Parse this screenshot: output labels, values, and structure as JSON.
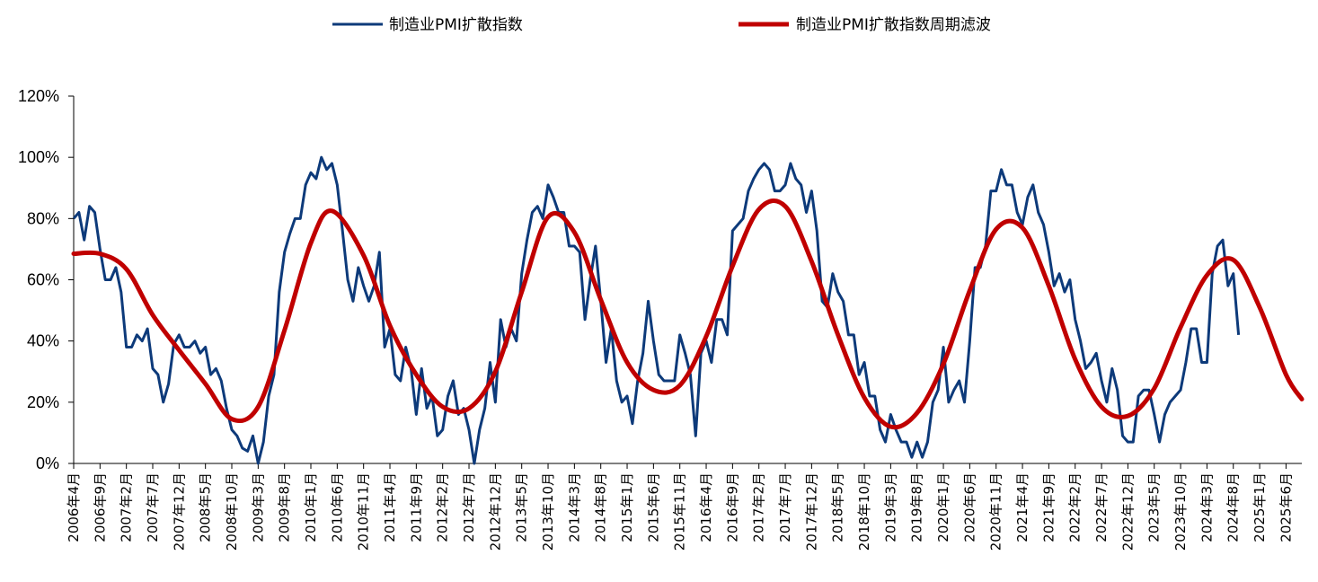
{
  "chart_data": {
    "type": "line",
    "legend_position": "top",
    "grid": false,
    "ylim": [
      0,
      120
    ],
    "y_tick_labels": [
      "0%",
      "20%",
      "40%",
      "60%",
      "80%",
      "100%",
      "120%"
    ],
    "y_ticks": [
      0,
      20,
      40,
      60,
      80,
      100,
      120
    ],
    "x_start": "2006-04",
    "x_end": "2025-09",
    "x_tick_labels": [
      "2006年4月",
      "2006年9月",
      "2007年2月",
      "2007年7月",
      "2007年12月",
      "2008年5月",
      "2008年10月",
      "2009年3月",
      "2009年8月",
      "2010年1月",
      "2010年6月",
      "2010年11月",
      "2011年4月",
      "2011年9月",
      "2012年2月",
      "2012年7月",
      "2012年12月",
      "2013年5月",
      "2013年10月",
      "2014年3月",
      "2014年8月",
      "2015年1月",
      "2015年6月",
      "2015年11月",
      "2016年4月",
      "2016年9月",
      "2017年2月",
      "2017年7月",
      "2017年12月",
      "2018年5月",
      "2018年10月",
      "2019年3月",
      "2019年8月",
      "2020年1月",
      "2020年6月",
      "2020年11月",
      "2021年4月",
      "2021年9月",
      "2022年2月",
      "2022年7月",
      "2022年12月",
      "2023年5月",
      "2023年10月",
      "2024年3月",
      "2024年8月",
      "2025年1月",
      "2025年6月"
    ],
    "series": [
      {
        "name": "制造业PMI扩散指数",
        "color": "#0d3a7a",
        "x_start": "2006-04",
        "values": [
          80,
          82,
          73,
          84,
          82,
          70,
          60,
          60,
          64,
          56,
          38,
          38,
          42,
          40,
          44,
          31,
          29,
          20,
          26,
          39,
          42,
          38,
          38,
          40,
          36,
          38,
          29,
          31,
          27,
          18,
          11,
          9,
          5,
          4,
          9,
          0,
          7,
          22,
          29,
          56,
          69,
          75,
          80,
          80,
          91,
          95,
          93,
          100,
          96,
          98,
          91,
          76,
          60,
          53,
          64,
          58,
          53,
          58,
          69,
          38,
          44,
          29,
          27,
          38,
          31,
          16,
          31,
          18,
          22,
          9,
          11,
          22,
          27,
          16,
          18,
          11,
          0,
          11,
          18,
          33,
          20,
          47,
          38,
          44,
          40,
          62,
          73,
          82,
          84,
          80,
          91,
          87,
          82,
          82,
          71,
          71,
          69,
          47,
          60,
          71,
          53,
          33,
          44,
          27,
          20,
          22,
          13,
          27,
          36,
          53,
          40,
          29,
          27,
          27,
          27,
          42,
          36,
          29,
          9,
          36,
          40,
          33,
          47,
          47,
          42,
          76,
          78,
          80,
          89,
          93,
          96,
          98,
          96,
          89,
          89,
          91,
          98,
          93,
          91,
          82,
          89,
          76,
          53,
          51,
          62,
          56,
          53,
          42,
          42,
          29,
          33,
          22,
          22,
          11,
          7,
          16,
          11,
          7,
          7,
          2,
          7,
          2,
          7,
          20,
          24,
          38,
          20,
          24,
          27,
          20,
          40,
          64,
          64,
          71,
          89,
          89,
          96,
          91,
          91,
          82,
          78,
          87,
          91,
          82,
          78,
          69,
          58,
          62,
          56,
          60,
          47,
          40,
          31,
          33,
          36,
          27,
          20,
          31,
          24,
          9,
          7,
          7,
          22,
          24,
          24,
          16,
          7,
          16,
          20,
          22,
          24,
          33,
          44,
          44,
          33,
          33,
          62,
          71,
          73,
          58,
          62,
          42
        ]
      },
      {
        "name": "制造业PMI扩散指数周期滤波",
        "color": "#c00000",
        "anchors_x": [
          "2006-04",
          "2006-09",
          "2007-02",
          "2007-07",
          "2007-12",
          "2008-05",
          "2008-10",
          "2009-03",
          "2009-08",
          "2010-01",
          "2010-05",
          "2010-11",
          "2011-04",
          "2011-09",
          "2012-02",
          "2012-07",
          "2012-12",
          "2013-05",
          "2013-10",
          "2014-03",
          "2014-08",
          "2015-01",
          "2015-06",
          "2015-11",
          "2016-04",
          "2016-09",
          "2017-02",
          "2017-07",
          "2017-12",
          "2018-05",
          "2018-10",
          "2019-03",
          "2019-08",
          "2020-01",
          "2020-06",
          "2020-11",
          "2021-04",
          "2021-09",
          "2022-02",
          "2022-07",
          "2022-12",
          "2023-05",
          "2023-10",
          "2024-03",
          "2024-08",
          "2025-01",
          "2025-06",
          "2025-09"
        ],
        "anchors_y": [
          68.5,
          68.5,
          63.5,
          48.5,
          37.0,
          26.0,
          14.5,
          18.5,
          43.5,
          72.0,
          82.5,
          68.0,
          45.0,
          29.0,
          18.5,
          18.0,
          30.0,
          56.0,
          80.5,
          75.5,
          53.5,
          33.0,
          24.0,
          25.5,
          41.5,
          64.5,
          83.0,
          84.0,
          66.0,
          42.0,
          21.5,
          12.0,
          16.5,
          32.5,
          56.5,
          76.5,
          77.0,
          58.0,
          34.0,
          18.5,
          15.5,
          24.5,
          44.5,
          61.5,
          66.5,
          51.0,
          29.0,
          21.0
        ]
      }
    ]
  }
}
